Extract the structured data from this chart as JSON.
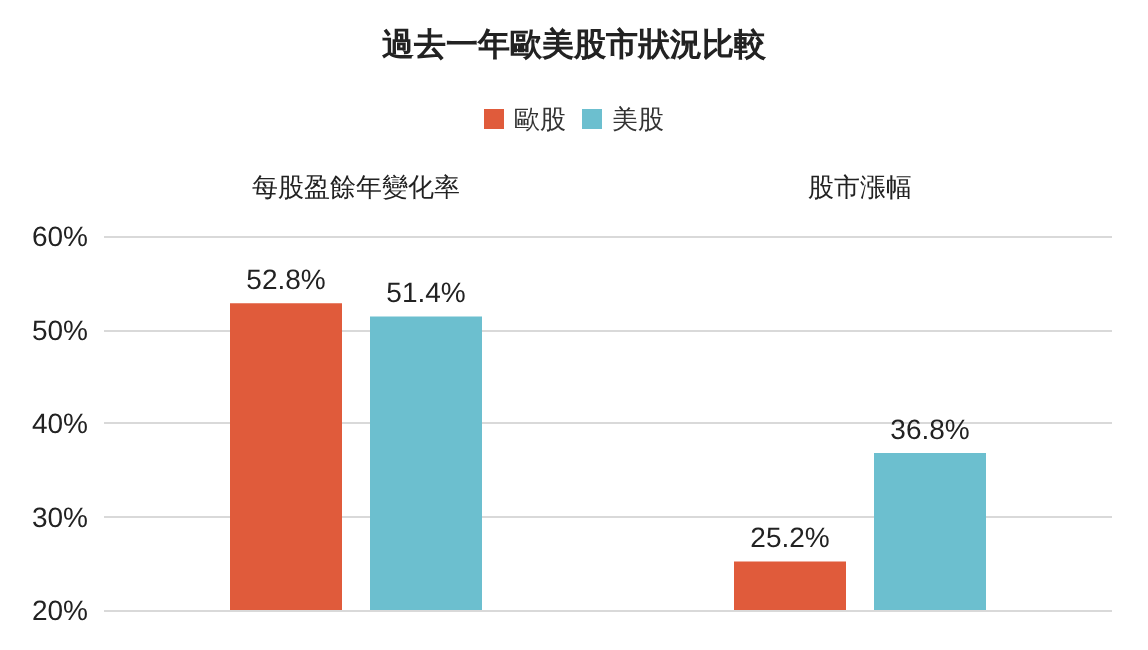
{
  "chart_data": {
    "type": "bar",
    "title": "過去一年歐美股市狀況比較",
    "categories": [
      "每股盈餘年變化率",
      "股市漲幅"
    ],
    "series": [
      {
        "name": "歐股",
        "color": "#e05b3b",
        "values": [
          52.8,
          25.2
        ],
        "value_labels": [
          "52.8%",
          "25.2%"
        ]
      },
      {
        "name": "美股",
        "color": "#6cbfcf",
        "values": [
          51.4,
          36.8
        ],
        "value_labels": [
          "51.4%",
          "36.8%"
        ]
      }
    ],
    "ylim": [
      20,
      60
    ],
    "yticks": [
      {
        "value": 20,
        "label": "20%"
      },
      {
        "value": 30,
        "label": "30%"
      },
      {
        "value": 40,
        "label": "40%"
      },
      {
        "value": 50,
        "label": "50%"
      },
      {
        "value": 60,
        "label": "60%"
      }
    ],
    "grid": "y",
    "legend": "top"
  }
}
